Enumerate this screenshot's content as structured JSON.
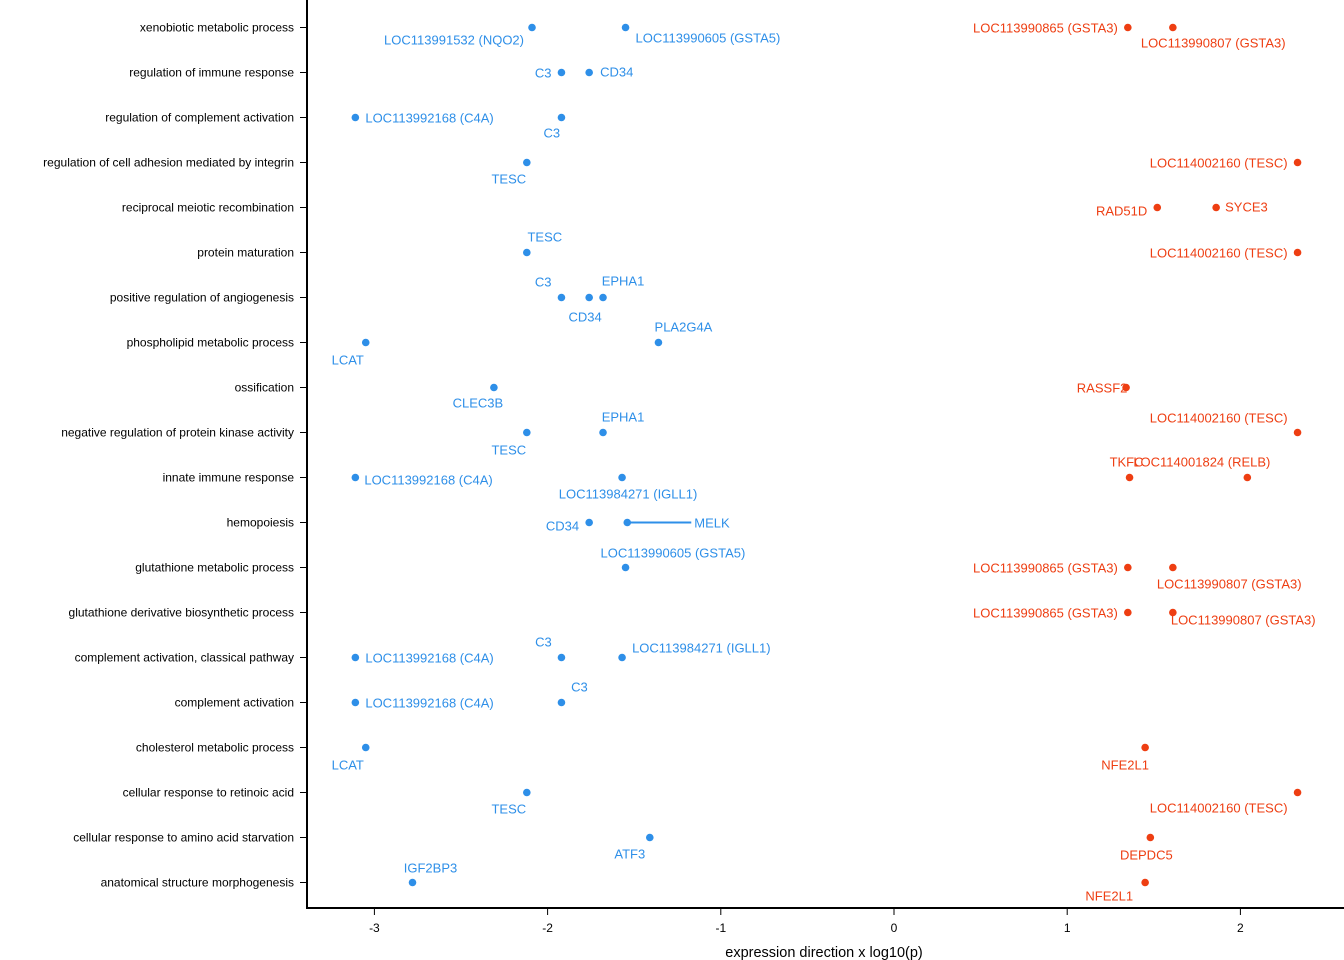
{
  "chart_data": {
    "type": "scatter",
    "xlabel": "expression direction x log10(p)",
    "ylabel": "",
    "title": "",
    "xlim": [
      -3.38,
      2.6
    ],
    "x_ticks": [
      -3,
      -2,
      -1,
      0,
      1,
      2
    ],
    "grid": false,
    "legend": "none",
    "colors": {
      "down": "#2E8FE8",
      "up": "#EE3E12"
    },
    "categories": [
      "xenobiotic metabolic process",
      "regulation of immune response",
      "regulation of complement activation",
      "regulation of cell adhesion mediated by integrin",
      "reciprocal meiotic recombination",
      "protein maturation",
      "positive regulation of angiogenesis",
      "phospholipid metabolic process",
      "ossification",
      "negative regulation of protein kinase activity",
      "innate immune response",
      "hemopoiesis",
      "glutathione metabolic process",
      "glutathione derivative biosynthetic process",
      "complement activation, classical pathway",
      "complement activation",
      "cholesterol metabolic process",
      "cellular response to retinoic acid",
      "cellular response to amino acid starvation",
      "anatomical structure morphogenesis"
    ],
    "points": [
      {
        "term": 0,
        "x": -2.09,
        "label": "LOC113991532 (NQO2)",
        "dir": "down"
      },
      {
        "term": 0,
        "x": -1.55,
        "label": "LOC113990605 (GSTA5)",
        "dir": "down"
      },
      {
        "term": 0,
        "x": 1.35,
        "label": "LOC113990865 (GSTA3)",
        "dir": "up"
      },
      {
        "term": 0,
        "x": 1.61,
        "label": "LOC113990807 (GSTA3)",
        "dir": "up"
      },
      {
        "term": 1,
        "x": -1.92,
        "label": "C3",
        "dir": "down"
      },
      {
        "term": 1,
        "x": -1.76,
        "label": "CD34",
        "dir": "down"
      },
      {
        "term": 2,
        "x": -3.11,
        "label": "LOC113992168 (C4A)",
        "dir": "down"
      },
      {
        "term": 2,
        "x": -1.92,
        "label": "C3",
        "dir": "down"
      },
      {
        "term": 3,
        "x": -2.12,
        "label": "TESC",
        "dir": "down"
      },
      {
        "term": 3,
        "x": 2.33,
        "label": "LOC114002160 (TESC)",
        "dir": "up"
      },
      {
        "term": 4,
        "x": 1.52,
        "label": "RAD51D",
        "dir": "up"
      },
      {
        "term": 4,
        "x": 1.86,
        "label": "SYCE3",
        "dir": "up"
      },
      {
        "term": 5,
        "x": -2.12,
        "label": "TESC",
        "dir": "down"
      },
      {
        "term": 5,
        "x": 2.33,
        "label": "LOC114002160 (TESC)",
        "dir": "up"
      },
      {
        "term": 6,
        "x": -1.92,
        "label": "C3",
        "dir": "down"
      },
      {
        "term": 6,
        "x": -1.76,
        "label": "CD34",
        "dir": "down"
      },
      {
        "term": 6,
        "x": -1.68,
        "label": "EPHA1",
        "dir": "down"
      },
      {
        "term": 7,
        "x": -3.05,
        "label": "LCAT",
        "dir": "down"
      },
      {
        "term": 7,
        "x": -1.36,
        "label": "PLA2G4A",
        "dir": "down"
      },
      {
        "term": 8,
        "x": -2.31,
        "label": "CLEC3B",
        "dir": "down"
      },
      {
        "term": 8,
        "x": 1.34,
        "label": "RASSF2",
        "dir": "up"
      },
      {
        "term": 9,
        "x": -2.12,
        "label": "TESC",
        "dir": "down"
      },
      {
        "term": 9,
        "x": -1.68,
        "label": "EPHA1",
        "dir": "down"
      },
      {
        "term": 9,
        "x": 2.33,
        "label": "LOC114002160 (TESC)",
        "dir": "up"
      },
      {
        "term": 10,
        "x": -3.11,
        "label": "LOC113992168 (C4A)",
        "dir": "down"
      },
      {
        "term": 10,
        "x": -1.57,
        "label": "LOC113984271 (IGLL1)",
        "dir": "down"
      },
      {
        "term": 10,
        "x": 1.36,
        "label": "TKFC",
        "dir": "up"
      },
      {
        "term": 10,
        "x": 2.04,
        "label": "LOC114001824 (RELB)",
        "dir": "up"
      },
      {
        "term": 11,
        "x": -1.76,
        "label": "CD34",
        "dir": "down"
      },
      {
        "term": 11,
        "x": -1.54,
        "label": "MELK",
        "dir": "down"
      },
      {
        "term": 12,
        "x": -1.55,
        "label": "LOC113990605 (GSTA5)",
        "dir": "down"
      },
      {
        "term": 12,
        "x": 1.35,
        "label": "LOC113990865 (GSTA3)",
        "dir": "up"
      },
      {
        "term": 12,
        "x": 1.61,
        "label": "LOC113990807 (GSTA3)",
        "dir": "up"
      },
      {
        "term": 13,
        "x": 1.35,
        "label": "LOC113990865 (GSTA3)",
        "dir": "up"
      },
      {
        "term": 13,
        "x": 1.61,
        "label": "LOC113990807 (GSTA3)",
        "dir": "up"
      },
      {
        "term": 14,
        "x": -3.11,
        "label": "LOC113992168 (C4A)",
        "dir": "down"
      },
      {
        "term": 14,
        "x": -1.92,
        "label": "C3",
        "dir": "down"
      },
      {
        "term": 14,
        "x": -1.57,
        "label": "LOC113984271 (IGLL1)",
        "dir": "down"
      },
      {
        "term": 15,
        "x": -3.11,
        "label": "LOC113992168 (C4A)",
        "dir": "down"
      },
      {
        "term": 15,
        "x": -1.92,
        "label": "C3",
        "dir": "down"
      },
      {
        "term": 16,
        "x": -3.05,
        "label": "LCAT",
        "dir": "down"
      },
      {
        "term": 16,
        "x": 1.45,
        "label": "NFE2L1",
        "dir": "up"
      },
      {
        "term": 17,
        "x": -2.12,
        "label": "TESC",
        "dir": "down"
      },
      {
        "term": 17,
        "x": 2.33,
        "label": "LOC114002160 (TESC)",
        "dir": "up"
      },
      {
        "term": 18,
        "x": -1.41,
        "label": "ATF3",
        "dir": "down"
      },
      {
        "term": 18,
        "x": 1.48,
        "label": "DEPDC5",
        "dir": "up"
      },
      {
        "term": 19,
        "x": -2.78,
        "label": "IGF2BP3",
        "dir": "down"
      },
      {
        "term": 19,
        "x": 1.45,
        "label": "NFE2L1",
        "dir": "up"
      }
    ]
  }
}
